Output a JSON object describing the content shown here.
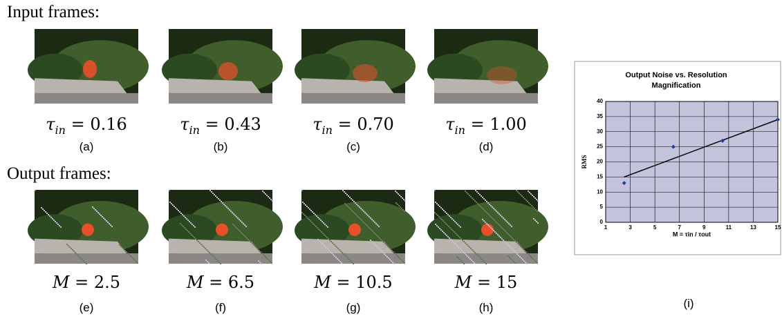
{
  "input_heading": "Input frames:",
  "output_heading": "Output frames:",
  "input_frames": [
    {
      "symbol": "τ",
      "subscript": "in",
      "value": "= 0.16",
      "tag": "(a)"
    },
    {
      "symbol": "τ",
      "subscript": "in",
      "value": "= 0.43",
      "tag": "(b)"
    },
    {
      "symbol": "τ",
      "subscript": "in",
      "value": "= 0.70",
      "tag": "(c)"
    },
    {
      "symbol": "τ",
      "subscript": "in",
      "value": "= 1.00",
      "tag": "(d)"
    }
  ],
  "output_frames": [
    {
      "symbol": "M",
      "value": "= 2.5",
      "tag": "(e)"
    },
    {
      "symbol": "M",
      "value": "= 6.5",
      "tag": "(f)"
    },
    {
      "symbol": "M",
      "value": "= 10.5",
      "tag": "(g)"
    },
    {
      "symbol": "M",
      "value": "= 15",
      "tag": "(h)"
    }
  ],
  "chart_data": {
    "type": "scatter",
    "title": "Output Noise vs. Resolution Magnification",
    "x_label": "M = τin / τout",
    "y_label": "RMS",
    "x": [
      2.5,
      6.5,
      10.5,
      15
    ],
    "series": [
      {
        "color": "#1f3f9f",
        "values": [
          13,
          25,
          27,
          34
        ]
      }
    ],
    "trendline": {
      "x": [
        2.5,
        15
      ],
      "y": [
        15,
        34
      ],
      "color": "#000000"
    },
    "xlim": [
      1,
      15
    ],
    "xticks": [
      1,
      3,
      5,
      7,
      9,
      11,
      13,
      15
    ],
    "ylim": [
      0,
      40
    ],
    "yticks": [
      0,
      5,
      10,
      15,
      20,
      25,
      30,
      35,
      40
    ],
    "grid": true,
    "background": "#c3c3dc"
  },
  "chart_caption": "(i)"
}
